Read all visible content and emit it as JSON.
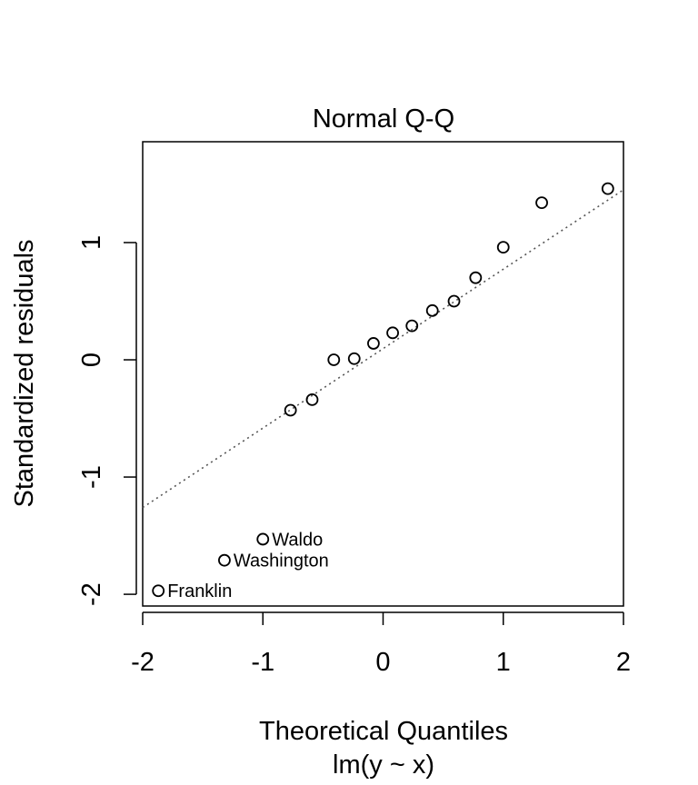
{
  "chart_data": {
    "type": "scatter",
    "title": "Normal Q-Q",
    "xlabel": "Theoretical Quantiles",
    "ylabel": "Standardized residuals",
    "caption": "lm(y ~ x)",
    "xlim": [
      -2,
      2
    ],
    "ylim": [
      -2.1,
      1.86
    ],
    "xticks": [
      -2,
      -1,
      0,
      1,
      2
    ],
    "yticks": [
      -2,
      -1,
      0,
      1
    ],
    "xtick_labels": [
      "-2",
      "-1",
      "0",
      "1",
      "2"
    ],
    "ytick_labels": [
      "-2",
      "-1",
      "0",
      "1"
    ],
    "grid": false,
    "points": [
      {
        "x": -1.87,
        "y": -1.97,
        "label": "Franklin"
      },
      {
        "x": -1.32,
        "y": -1.71,
        "label": "Washington"
      },
      {
        "x": -1.0,
        "y": -1.53,
        "label": "Waldo"
      },
      {
        "x": -0.77,
        "y": -0.43
      },
      {
        "x": -0.59,
        "y": -0.34
      },
      {
        "x": -0.41,
        "y": 0.0
      },
      {
        "x": -0.24,
        "y": 0.01
      },
      {
        "x": -0.08,
        "y": 0.14
      },
      {
        "x": 0.08,
        "y": 0.23
      },
      {
        "x": 0.24,
        "y": 0.29
      },
      {
        "x": 0.41,
        "y": 0.42
      },
      {
        "x": 0.59,
        "y": 0.5
      },
      {
        "x": 0.77,
        "y": 0.7
      },
      {
        "x": 1.0,
        "y": 0.96
      },
      {
        "x": 1.32,
        "y": 1.34
      },
      {
        "x": 1.87,
        "y": 1.46
      }
    ],
    "reference_line": {
      "x1": -2,
      "y1": -1.26,
      "x2": 2,
      "y2": 1.45,
      "style": "dotted",
      "color": "#555555"
    }
  }
}
